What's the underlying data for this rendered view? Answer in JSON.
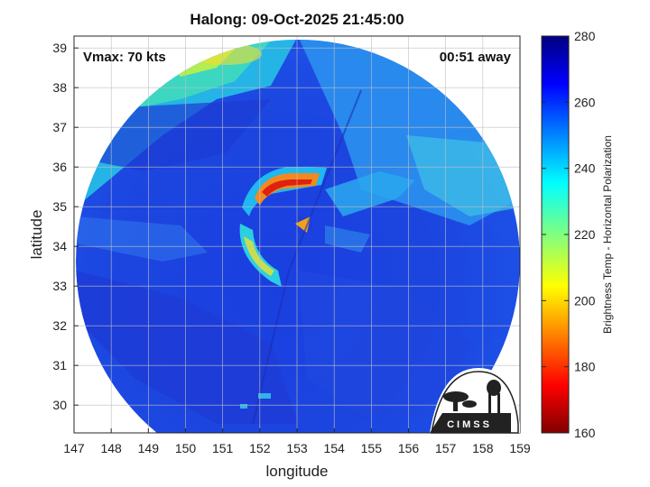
{
  "title": "Halong: 09-Oct-2025 21:45:00",
  "overlay": {
    "vmax": "Vmax: 70 kts",
    "time_away": "00:51 away"
  },
  "map": {
    "xlabel": "longitude",
    "ylabel": "latitude",
    "lon_range": [
      147,
      159
    ],
    "lat_range": [
      29.3,
      39.3
    ],
    "lon_ticks": [
      "147",
      "148",
      "149",
      "150",
      "151",
      "152",
      "153",
      "154",
      "155",
      "156",
      "157",
      "158",
      "159"
    ],
    "lat_ticks": [
      "30",
      "31",
      "32",
      "33",
      "34",
      "35",
      "36",
      "37",
      "38",
      "39"
    ],
    "grid": true,
    "storm_center": {
      "lon": 153.2,
      "lat": 34.5
    }
  },
  "colorbar": {
    "label": "Brightness Temp - Horizontal Polarization",
    "range": [
      160,
      280
    ],
    "ticks": [
      "280",
      "260",
      "240",
      "220",
      "200",
      "180",
      "160"
    ],
    "colormap": "jet"
  },
  "logo": {
    "text": "CIMSS"
  }
}
